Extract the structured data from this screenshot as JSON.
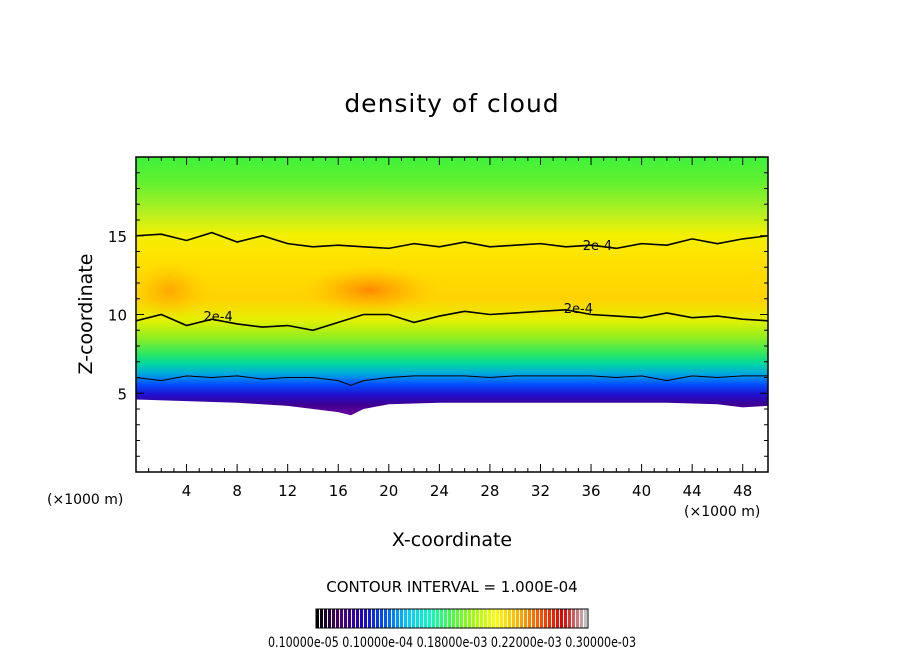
{
  "chart_data": {
    "type": "heatmap",
    "title": "density of cloud",
    "xlabel": "X-coordinate",
    "ylabel": "Z-coordinate",
    "x_units": "(×1000 m)",
    "z_units": "(×1000 m)",
    "xlim": [
      0,
      50
    ],
    "ylim": [
      0,
      20
    ],
    "x_ticks": [
      4,
      8,
      12,
      16,
      20,
      24,
      28,
      32,
      36,
      40,
      44,
      48
    ],
    "x_tick_labels": [
      "4",
      "8",
      "12",
      "16",
      "20",
      "24",
      "28",
      "32",
      "36",
      "40",
      "44",
      "48"
    ],
    "y_ticks": [
      5,
      10,
      15
    ],
    "y_tick_labels": [
      "5",
      "10",
      "15"
    ],
    "contour_interval_text": "CONTOUR INTERVAL = 1.000E-04",
    "contour_labels": [
      {
        "text": "2e-4",
        "x": 36.5,
        "z": 14.4
      },
      {
        "text": "2e-4",
        "x": 35.0,
        "z": 10.4
      },
      {
        "text": "2e-4",
        "x": 6.5,
        "z": 9.9
      }
    ],
    "contours": [
      {
        "level": "2e-4",
        "x": [
          0,
          2,
          4,
          6,
          8,
          10,
          12,
          14,
          16,
          18,
          20,
          22,
          24,
          26,
          28,
          30,
          32,
          34,
          36,
          38,
          40,
          42,
          44,
          46,
          48,
          50
        ],
        "z": [
          15.0,
          15.1,
          14.7,
          15.2,
          14.6,
          15.0,
          14.5,
          14.3,
          14.4,
          14.3,
          14.2,
          14.5,
          14.3,
          14.6,
          14.3,
          14.4,
          14.5,
          14.3,
          14.4,
          14.2,
          14.5,
          14.4,
          14.8,
          14.5,
          14.8,
          15.0
        ]
      },
      {
        "level": "2e-4",
        "x": [
          0,
          2,
          4,
          6,
          8,
          10,
          12,
          14,
          16,
          18,
          20,
          22,
          24,
          26,
          28,
          30,
          32,
          34,
          36,
          38,
          40,
          42,
          44,
          46,
          48,
          50
        ],
        "z": [
          9.6,
          10.0,
          9.3,
          9.7,
          9.4,
          9.2,
          9.3,
          9.0,
          9.5,
          10.0,
          10.0,
          9.5,
          9.9,
          10.2,
          10.0,
          10.1,
          10.2,
          10.3,
          10.0,
          9.9,
          9.8,
          10.1,
          9.8,
          9.9,
          9.7,
          9.6
        ]
      },
      {
        "level": "1e-4",
        "x": [
          0,
          2,
          4,
          6,
          8,
          10,
          12,
          14,
          16,
          17,
          18,
          20,
          22,
          24,
          26,
          28,
          30,
          32,
          34,
          36,
          38,
          40,
          42,
          44,
          46,
          48,
          50
        ],
        "z": [
          6.0,
          5.8,
          6.1,
          6.0,
          6.1,
          5.9,
          6.0,
          6.0,
          5.8,
          5.5,
          5.8,
          6.0,
          6.1,
          6.1,
          6.1,
          6.0,
          6.1,
          6.1,
          6.1,
          6.1,
          6.0,
          6.1,
          5.8,
          6.1,
          6.0,
          6.1,
          6.1
        ]
      }
    ],
    "cloud_top_base_z": [
      {
        "x": 0,
        "z": 4.6
      },
      {
        "x": 4,
        "z": 4.5
      },
      {
        "x": 8,
        "z": 4.4
      },
      {
        "x": 12,
        "z": 4.2
      },
      {
        "x": 16,
        "z": 3.8
      },
      {
        "x": 17,
        "z": 3.6
      },
      {
        "x": 18,
        "z": 4.0
      },
      {
        "x": 20,
        "z": 4.3
      },
      {
        "x": 24,
        "z": 4.4
      },
      {
        "x": 30,
        "z": 4.4
      },
      {
        "x": 36,
        "z": 4.4
      },
      {
        "x": 42,
        "z": 4.4
      },
      {
        "x": 46,
        "z": 4.3
      },
      {
        "x": 48,
        "z": 4.1
      },
      {
        "x": 50,
        "z": 4.2
      }
    ],
    "colorbar": {
      "label_text": "0.10000e-05 0.10000e-04 0.18000e-03 0.22000e-03 0.30000e-03",
      "colors": [
        "#000000",
        "#4b0078",
        "#1e00c8",
        "#0050ff",
        "#00c8ff",
        "#00ffc0",
        "#40ff40",
        "#a0ff00",
        "#ffff00",
        "#ffb000",
        "#ff5000",
        "#e00000",
        "#c0c0c0"
      ]
    },
    "grid": false
  }
}
